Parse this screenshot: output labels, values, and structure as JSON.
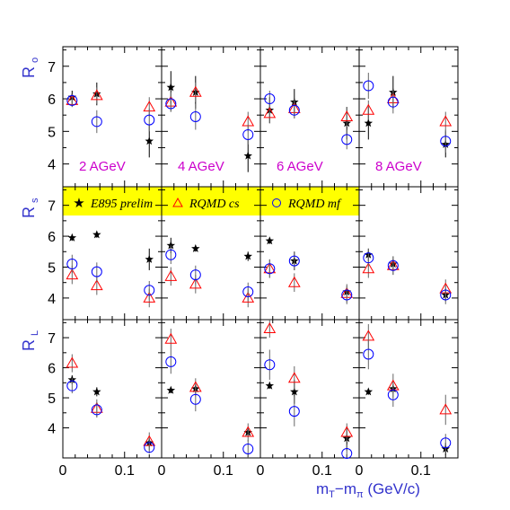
{
  "chart_data": {
    "type": "scatter",
    "title": "",
    "xlabel": {
      "main": "m",
      "sub1": "T",
      "mid": "−m",
      "sub2": "π",
      "unit": " (GeV/c)"
    },
    "xlim": [
      0,
      0.16
    ],
    "x_ticks": [
      "0",
      "0.1"
    ],
    "columns": [
      "2 AGeV",
      "4 AGeV",
      "6 AGeV",
      "8 AGeV"
    ],
    "rows": [
      {
        "label": "R",
        "sub": "o",
        "ylim": [
          3.3,
          7.6
        ],
        "ticks": [
          4,
          5,
          6,
          7
        ]
      },
      {
        "label": "R",
        "sub": "s",
        "ylim": [
          3.3,
          7.6
        ],
        "ticks": [
          4,
          5,
          6,
          7
        ]
      },
      {
        "label": "R",
        "sub": "L",
        "ylim": [
          3.0,
          7.6
        ],
        "ticks": [
          4,
          5,
          6,
          7
        ]
      }
    ],
    "legend": {
      "position": "band across row 2",
      "entries": [
        {
          "symbol": "★",
          "label": "E895 prelim",
          "series": "E895"
        },
        {
          "symbol": "△",
          "label": "RQMD cs",
          "series": "RQMD cs"
        },
        {
          "symbol": "○",
          "label": "RQMD mf",
          "series": "RQMD mf"
        }
      ]
    },
    "series": [
      {
        "name": "E895 prelim",
        "marker": "star",
        "color": "#000000"
      },
      {
        "name": "RQMD cs",
        "marker": "triangle",
        "color": "#ff0000"
      },
      {
        "name": "RQMD mf",
        "marker": "circle",
        "color": "#0000ff"
      }
    ],
    "panels": [
      {
        "row": 0,
        "col": 0,
        "label": "2 AGeV",
        "points": [
          {
            "s": 0,
            "x": 0.015,
            "y": 6.05,
            "e": 0.2
          },
          {
            "s": 0,
            "x": 0.055,
            "y": 6.15,
            "e": 0.35
          },
          {
            "s": 0,
            "x": 0.14,
            "y": 4.7,
            "e": 0.5
          },
          {
            "s": 1,
            "x": 0.015,
            "y": 5.95,
            "e": 0.2
          },
          {
            "s": 1,
            "x": 0.055,
            "y": 6.1,
            "e": 0.25
          },
          {
            "s": 1,
            "x": 0.14,
            "y": 5.75,
            "e": 0.3
          },
          {
            "s": 2,
            "x": 0.015,
            "y": 5.95,
            "e": 0.2
          },
          {
            "s": 2,
            "x": 0.055,
            "y": 5.3,
            "e": 0.35
          },
          {
            "s": 2,
            "x": 0.14,
            "y": 5.35,
            "e": 0.35
          }
        ]
      },
      {
        "row": 0,
        "col": 1,
        "label": "4 AGeV",
        "points": [
          {
            "s": 0,
            "x": 0.015,
            "y": 6.35,
            "e": 0.5
          },
          {
            "s": 0,
            "x": 0.055,
            "y": 6.2,
            "e": 0.5
          },
          {
            "s": 0,
            "x": 0.14,
            "y": 4.25,
            "e": 0.5
          },
          {
            "s": 1,
            "x": 0.015,
            "y": 5.9,
            "e": 0.3
          },
          {
            "s": 1,
            "x": 0.055,
            "y": 6.2,
            "e": 0.3
          },
          {
            "s": 1,
            "x": 0.14,
            "y": 5.3,
            "e": 0.3
          },
          {
            "s": 2,
            "x": 0.015,
            "y": 5.85,
            "e": 0.25
          },
          {
            "s": 2,
            "x": 0.055,
            "y": 5.45,
            "e": 0.4
          },
          {
            "s": 2,
            "x": 0.14,
            "y": 4.9,
            "e": 0.3
          }
        ]
      },
      {
        "row": 0,
        "col": 2,
        "label": "6 AGeV",
        "points": [
          {
            "s": 0,
            "x": 0.015,
            "y": 5.65,
            "e": 0.4
          },
          {
            "s": 0,
            "x": 0.055,
            "y": 5.9,
            "e": 0.4
          },
          {
            "s": 0,
            "x": 0.14,
            "y": 5.25,
            "e": 0.5
          },
          {
            "s": 1,
            "x": 0.015,
            "y": 5.55,
            "e": 0.3
          },
          {
            "s": 1,
            "x": 0.055,
            "y": 5.7,
            "e": 0.3
          },
          {
            "s": 1,
            "x": 0.14,
            "y": 5.45,
            "e": 0.3
          },
          {
            "s": 2,
            "x": 0.015,
            "y": 6.0,
            "e": 0.25
          },
          {
            "s": 2,
            "x": 0.055,
            "y": 5.65,
            "e": 0.25
          },
          {
            "s": 2,
            "x": 0.14,
            "y": 4.75,
            "e": 0.3
          }
        ]
      },
      {
        "row": 0,
        "col": 3,
        "label": "8 AGeV",
        "points": [
          {
            "s": 0,
            "x": 0.015,
            "y": 5.25,
            "e": 0.5
          },
          {
            "s": 0,
            "x": 0.055,
            "y": 6.2,
            "e": 0.5
          },
          {
            "s": 0,
            "x": 0.14,
            "y": 4.6,
            "e": 0.4
          },
          {
            "s": 1,
            "x": 0.015,
            "y": 5.65,
            "e": 0.3
          },
          {
            "s": 1,
            "x": 0.055,
            "y": 6.0,
            "e": 0.3
          },
          {
            "s": 1,
            "x": 0.14,
            "y": 5.3,
            "e": 0.3
          },
          {
            "s": 2,
            "x": 0.015,
            "y": 6.4,
            "e": 0.4
          },
          {
            "s": 2,
            "x": 0.055,
            "y": 5.9,
            "e": 0.35
          },
          {
            "s": 2,
            "x": 0.14,
            "y": 4.7,
            "e": 0.35
          }
        ]
      },
      {
        "row": 1,
        "col": 0,
        "points": [
          {
            "s": 0,
            "x": 0.015,
            "y": 5.95,
            "e": 0.1
          },
          {
            "s": 0,
            "x": 0.055,
            "y": 6.05,
            "e": 0.1
          },
          {
            "s": 0,
            "x": 0.14,
            "y": 5.25,
            "e": 0.35
          },
          {
            "s": 1,
            "x": 0.015,
            "y": 4.75,
            "e": 0.3
          },
          {
            "s": 1,
            "x": 0.055,
            "y": 4.4,
            "e": 0.3
          },
          {
            "s": 1,
            "x": 0.14,
            "y": 4.0,
            "e": 0.3
          },
          {
            "s": 2,
            "x": 0.015,
            "y": 5.1,
            "e": 0.3
          },
          {
            "s": 2,
            "x": 0.055,
            "y": 4.85,
            "e": 0.3
          },
          {
            "s": 2,
            "x": 0.14,
            "y": 4.25,
            "e": 0.3
          }
        ]
      },
      {
        "row": 1,
        "col": 1,
        "points": [
          {
            "s": 0,
            "x": 0.015,
            "y": 5.7,
            "e": 0.25
          },
          {
            "s": 0,
            "x": 0.055,
            "y": 5.6,
            "e": 0.1
          },
          {
            "s": 0,
            "x": 0.14,
            "y": 5.35,
            "e": 0.15
          },
          {
            "s": 1,
            "x": 0.015,
            "y": 4.7,
            "e": 0.3
          },
          {
            "s": 1,
            "x": 0.055,
            "y": 4.45,
            "e": 0.3
          },
          {
            "s": 1,
            "x": 0.14,
            "y": 4.0,
            "e": 0.3
          },
          {
            "s": 2,
            "x": 0.015,
            "y": 5.4,
            "e": 0.3
          },
          {
            "s": 2,
            "x": 0.055,
            "y": 4.75,
            "e": 0.3
          },
          {
            "s": 2,
            "x": 0.14,
            "y": 4.2,
            "e": 0.3
          }
        ]
      },
      {
        "row": 1,
        "col": 2,
        "points": [
          {
            "s": 0,
            "x": 0.015,
            "y": 5.85,
            "e": 0.1
          },
          {
            "s": 0,
            "x": 0.055,
            "y": 5.2,
            "e": 0.3
          },
          {
            "s": 0,
            "x": 0.14,
            "y": 4.2,
            "e": 0.1
          },
          {
            "s": 1,
            "x": 0.015,
            "y": 4.95,
            "e": 0.3
          },
          {
            "s": 1,
            "x": 0.055,
            "y": 4.5,
            "e": 0.3
          },
          {
            "s": 1,
            "x": 0.14,
            "y": 4.15,
            "e": 0.3
          },
          {
            "s": 2,
            "x": 0.015,
            "y": 4.95,
            "e": 0.3
          },
          {
            "s": 2,
            "x": 0.055,
            "y": 5.2,
            "e": 0.3
          },
          {
            "s": 2,
            "x": 0.14,
            "y": 4.1,
            "e": 0.3
          }
        ]
      },
      {
        "row": 1,
        "col": 3,
        "points": [
          {
            "s": 0,
            "x": 0.015,
            "y": 5.4,
            "e": 0.2
          },
          {
            "s": 0,
            "x": 0.055,
            "y": 5.1,
            "e": 0.15
          },
          {
            "s": 0,
            "x": 0.14,
            "y": 4.1,
            "e": 0.2
          },
          {
            "s": 1,
            "x": 0.015,
            "y": 4.95,
            "e": 0.3
          },
          {
            "s": 1,
            "x": 0.055,
            "y": 5.05,
            "e": 0.3
          },
          {
            "s": 1,
            "x": 0.14,
            "y": 4.3,
            "e": 0.3
          },
          {
            "s": 2,
            "x": 0.015,
            "y": 5.3,
            "e": 0.3
          },
          {
            "s": 2,
            "x": 0.055,
            "y": 5.05,
            "e": 0.3
          },
          {
            "s": 2,
            "x": 0.14,
            "y": 4.1,
            "e": 0.3
          }
        ]
      },
      {
        "row": 2,
        "col": 0,
        "points": [
          {
            "s": 0,
            "x": 0.015,
            "y": 5.6,
            "e": 0.15
          },
          {
            "s": 0,
            "x": 0.055,
            "y": 5.2,
            "e": 0.15
          },
          {
            "s": 0,
            "x": 0.14,
            "y": 3.5,
            "e": 0.15
          },
          {
            "s": 1,
            "x": 0.015,
            "y": 6.15,
            "e": 0.3
          },
          {
            "s": 1,
            "x": 0.055,
            "y": 4.65,
            "e": 0.3
          },
          {
            "s": 1,
            "x": 0.14,
            "y": 3.55,
            "e": 0.3
          },
          {
            "s": 2,
            "x": 0.015,
            "y": 5.4,
            "e": 0.25
          },
          {
            "s": 2,
            "x": 0.055,
            "y": 4.6,
            "e": 0.25
          },
          {
            "s": 2,
            "x": 0.14,
            "y": 3.35,
            "e": 0.2
          }
        ]
      },
      {
        "row": 2,
        "col": 1,
        "points": [
          {
            "s": 0,
            "x": 0.015,
            "y": 5.25,
            "e": 0.1
          },
          {
            "s": 0,
            "x": 0.055,
            "y": 5.3,
            "e": 0.15
          },
          {
            "s": 0,
            "x": 0.14,
            "y": 3.85,
            "e": 0.15
          },
          {
            "s": 1,
            "x": 0.015,
            "y": 6.95,
            "e": 0.35
          },
          {
            "s": 1,
            "x": 0.055,
            "y": 5.35,
            "e": 0.3
          },
          {
            "s": 1,
            "x": 0.14,
            "y": 3.85,
            "e": 0.3
          },
          {
            "s": 2,
            "x": 0.015,
            "y": 6.2,
            "e": 0.4
          },
          {
            "s": 2,
            "x": 0.055,
            "y": 4.95,
            "e": 0.4
          },
          {
            "s": 2,
            "x": 0.14,
            "y": 3.3,
            "e": 0.3
          }
        ]
      },
      {
        "row": 2,
        "col": 2,
        "points": [
          {
            "s": 0,
            "x": 0.015,
            "y": 5.4,
            "e": 0.1
          },
          {
            "s": 0,
            "x": 0.055,
            "y": 5.2,
            "e": 0.4
          },
          {
            "s": 0,
            "x": 0.14,
            "y": 3.65,
            "e": 0.4
          },
          {
            "s": 1,
            "x": 0.015,
            "y": 7.3,
            "e": 0.3
          },
          {
            "s": 1,
            "x": 0.055,
            "y": 5.65,
            "e": 0.4
          },
          {
            "s": 1,
            "x": 0.14,
            "y": 3.85,
            "e": 0.3
          },
          {
            "s": 2,
            "x": 0.015,
            "y": 6.1,
            "e": 0.5
          },
          {
            "s": 2,
            "x": 0.055,
            "y": 4.55,
            "e": 0.5
          },
          {
            "s": 2,
            "x": 0.14,
            "y": 3.15,
            "e": 0.3
          }
        ]
      },
      {
        "row": 2,
        "col": 3,
        "points": [
          {
            "s": 0,
            "x": 0.015,
            "y": 5.2,
            "e": 0.1
          },
          {
            "s": 0,
            "x": 0.055,
            "y": 5.3,
            "e": 0.15
          },
          {
            "s": 0,
            "x": 0.14,
            "y": 3.3,
            "e": 0.2
          },
          {
            "s": 1,
            "x": 0.015,
            "y": 7.05,
            "e": 0.4
          },
          {
            "s": 1,
            "x": 0.055,
            "y": 5.4,
            "e": 0.4
          },
          {
            "s": 1,
            "x": 0.14,
            "y": 4.6,
            "e": 0.5
          },
          {
            "s": 2,
            "x": 0.015,
            "y": 6.45,
            "e": 0.5
          },
          {
            "s": 2,
            "x": 0.055,
            "y": 5.1,
            "e": 0.4
          },
          {
            "s": 2,
            "x": 0.14,
            "y": 3.5,
            "e": 0.3
          }
        ]
      }
    ],
    "colors": {
      "panel_label": "#cc00cc",
      "axis_label": "#3333cc",
      "legend_band": "#ffff00"
    }
  }
}
